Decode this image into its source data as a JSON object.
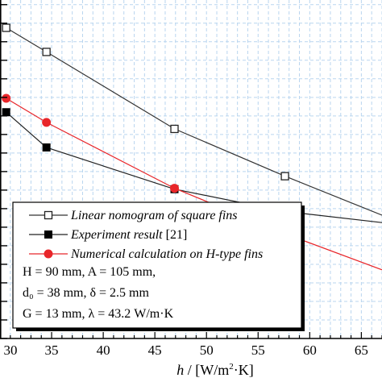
{
  "chart_data": {
    "type": "line",
    "xlabel": {
      "var": "h",
      "sep": " / [W/m",
      "sup": "2",
      "tail": "·K]"
    },
    "ylabel": "",
    "xlim": [
      30,
      67
    ],
    "ylim": [
      0,
      36.5
    ],
    "x_ticks": [
      30,
      35,
      40,
      45,
      50,
      55,
      60,
      65
    ],
    "grid": true,
    "series": [
      {
        "name": "Linear nomogram of square fins",
        "marker": "square-open",
        "color": "#333333",
        "x": [
          30.6,
          34.5,
          46.9,
          57.6,
          67
        ],
        "y": [
          33.5,
          30.9,
          22.6,
          17.5,
          13.3
        ]
      },
      {
        "name": "Experiment result [21]",
        "marker": "square-filled",
        "color": "#222222",
        "x": [
          30.6,
          34.5,
          46.9,
          57.6,
          67
        ],
        "y": [
          24.4,
          20.6,
          16.1,
          13.7,
          12.5
        ]
      },
      {
        "name": "Numerical calculation on H-type fins",
        "marker": "circle-filled",
        "color": "#e8262a",
        "x": [
          30.6,
          34.5,
          46.9,
          57.6,
          67
        ],
        "y": [
          25.9,
          23.3,
          16.2,
          11.3,
          7.4
        ]
      }
    ],
    "legend": {
      "placement": "bottom-left",
      "params": [
        "H = 90 mm, A = 105 mm,",
        "d₀ = 38 mm, δ = 2.5 mm",
        "G = 13 mm, λ = 43.2 W/m·K"
      ]
    }
  }
}
